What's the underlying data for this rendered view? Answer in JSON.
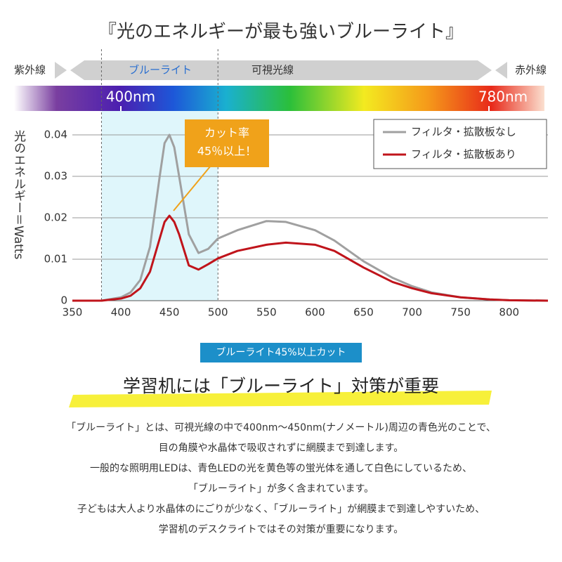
{
  "header": {
    "title": "『光のエネルギーが最も強いブルーライト』",
    "uv": "紫外線",
    "blue_light": "ブルーライト",
    "visible": "可視光線",
    "ir": "赤外線",
    "nm400": "400nm",
    "nm780": "780nm"
  },
  "chart_data": {
    "type": "line",
    "y_label": "光のエネルギー＝Watts",
    "callout": [
      "カット率",
      "45％以上！"
    ],
    "x": [
      350,
      380,
      400,
      410,
      420,
      430,
      440,
      445,
      450,
      455,
      460,
      470,
      480,
      490,
      500,
      520,
      550,
      570,
      600,
      620,
      650,
      680,
      700,
      720,
      750,
      780,
      800,
      840
    ],
    "series": [
      {
        "name": "フィルタ・拡散板なし",
        "color": "#a0a0a0",
        "values": [
          0,
          0,
          0.0008,
          0.002,
          0.005,
          0.013,
          0.03,
          0.038,
          0.04,
          0.037,
          0.03,
          0.016,
          0.0115,
          0.0125,
          0.015,
          0.017,
          0.0192,
          0.019,
          0.017,
          0.0145,
          0.0095,
          0.0055,
          0.0035,
          0.002,
          0.0008,
          0.0003,
          0.0001,
          0
        ]
      },
      {
        "name": "フィルタ・拡散板あり",
        "color": "#c0141b",
        "values": [
          0,
          0,
          0.0005,
          0.0012,
          0.003,
          0.007,
          0.015,
          0.019,
          0.0205,
          0.019,
          0.016,
          0.0085,
          0.0075,
          0.0088,
          0.0102,
          0.012,
          0.0135,
          0.014,
          0.0135,
          0.012,
          0.008,
          0.0045,
          0.003,
          0.0018,
          0.0008,
          0.0003,
          0.0001,
          0
        ]
      }
    ],
    "highlight_range": [
      380,
      500
    ],
    "xlim": [
      350,
      840
    ],
    "ylim": [
      0,
      0.04
    ],
    "xticks": [
      350,
      400,
      450,
      500,
      550,
      600,
      650,
      700,
      750,
      800
    ],
    "yticks": [
      0,
      0.01,
      0.02,
      0.03,
      0.04
    ],
    "grid": true
  },
  "badge": "ブルーライト45%以上カット",
  "heading": "学習机には「ブルーライト」対策が重要",
  "body": [
    "「ブルーライト」とは、可視光線の中で400nm〜450nm(ナノメートル)周辺の青色光のことで、",
    "目の角膜や水晶体で吸収されずに網膜まで到達します。",
    "一般的な照明用LEDは、青色LEDの光を黄色等の蛍光体を通して白色にしているため、",
    "「ブルーライト」が多く含まれています。",
    "子どもは大人より水晶体のにごりが少なく、「ブルーライト」が網膜まで到達しやすいため、",
    "学習机のデスクライトではその対策が重要になります。"
  ]
}
